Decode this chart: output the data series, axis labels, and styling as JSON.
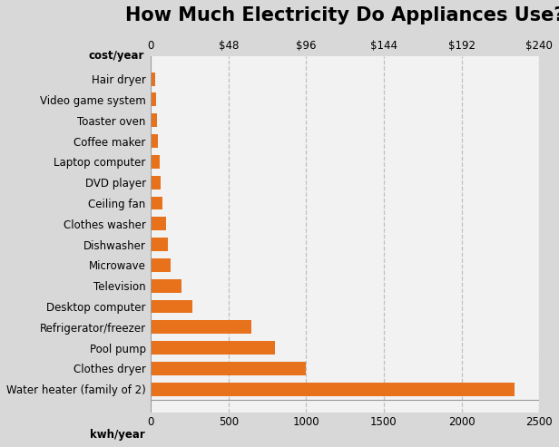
{
  "title": "How Much Electricity Do Appliances Use?",
  "appliances": [
    "Water heater (family of 2)",
    "Clothes dryer",
    "Pool pump",
    "Refrigerator/freezer",
    "Desktop computer",
    "Television",
    "Microwave",
    "Dishwasher",
    "Clothes washer",
    "Ceiling fan",
    "DVD player",
    "Laptop computer",
    "Coffee maker",
    "Toaster oven",
    "Video game system",
    "Hair dryer"
  ],
  "kwh_values": [
    2340,
    1000,
    800,
    650,
    270,
    200,
    130,
    110,
    100,
    75,
    65,
    55,
    45,
    40,
    35,
    25
  ],
  "bar_color": "#E8721C",
  "background_color": "#D8D8D8",
  "plot_background_color": "#F2F2F2",
  "top_axis_label": "cost/year",
  "bottom_axis_label": "kwh/year",
  "xlim": [
    0,
    2500
  ],
  "top_ticks_kwh": [
    0,
    500,
    1000,
    1500,
    2000,
    2500
  ],
  "top_tick_labels": [
    "0",
    "$48",
    "$96",
    "$144",
    "$192",
    "$240"
  ],
  "bottom_ticks": [
    0,
    500,
    1000,
    1500,
    2000,
    2500
  ],
  "bottom_tick_labels": [
    "0",
    "500",
    "1000",
    "1500",
    "2000",
    "2500"
  ],
  "grid_color": "#C0C0C0",
  "title_fontsize": 15,
  "label_fontsize": 8.5,
  "tick_fontsize": 8.5,
  "bar_height": 0.65
}
